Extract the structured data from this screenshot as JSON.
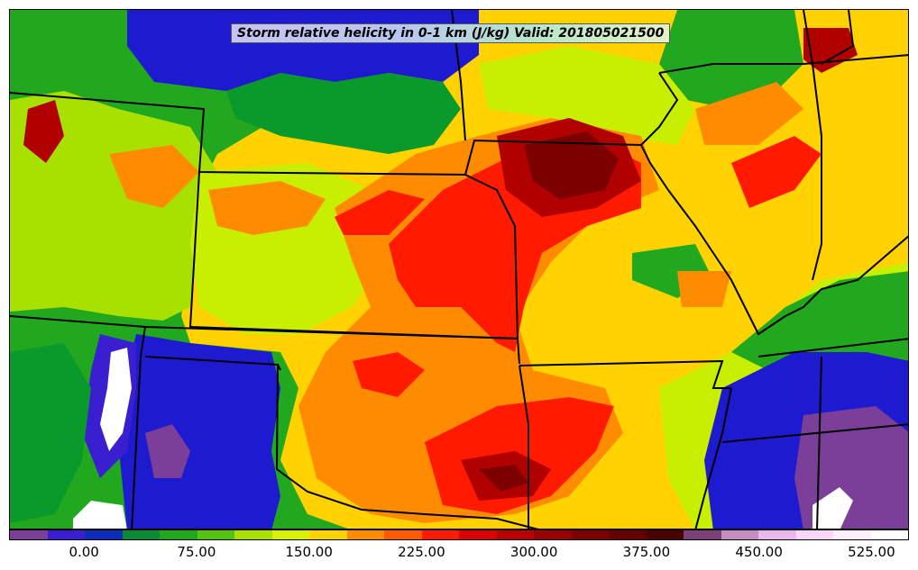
{
  "map": {
    "title": "Storm relative helicity in 0-1 km (J/kg) Valid: 201805021500"
  },
  "colorbar": {
    "colors": [
      "#7b3f99",
      "#3a1fd1",
      "#0b2db8",
      "#0a8a35",
      "#21a81f",
      "#55c411",
      "#a8e100",
      "#d9f000",
      "#ffd200",
      "#ff8c00",
      "#ff5a00",
      "#ff1a00",
      "#dd0000",
      "#b80000",
      "#990000",
      "#7d0000",
      "#640000",
      "#4d0000",
      "#7b3f7a",
      "#c58cc0",
      "#e9b8ea",
      "#f8d8f6",
      "#fdeefd",
      "#ffffff"
    ],
    "tick_labels": [
      "0.00",
      "75.00",
      "150.00",
      "225.00",
      "300.00",
      "375.00",
      "450.00",
      "525.00"
    ],
    "tick_values": [
      0,
      75,
      150,
      225,
      300,
      375,
      450,
      525
    ],
    "min": -50,
    "max": 550
  },
  "legend_colors": {
    "state_border": "#000000",
    "purple": "#7b3f99",
    "blue": "#1e1ad0",
    "green": "#0a9a2c",
    "lightgreen": "#55c411",
    "yellowgreen": "#c8ee00",
    "yellow": "#ffd200",
    "orange": "#ff8c00",
    "red": "#ff1a00",
    "darkred": "#b00000",
    "white": "#ffffff"
  }
}
